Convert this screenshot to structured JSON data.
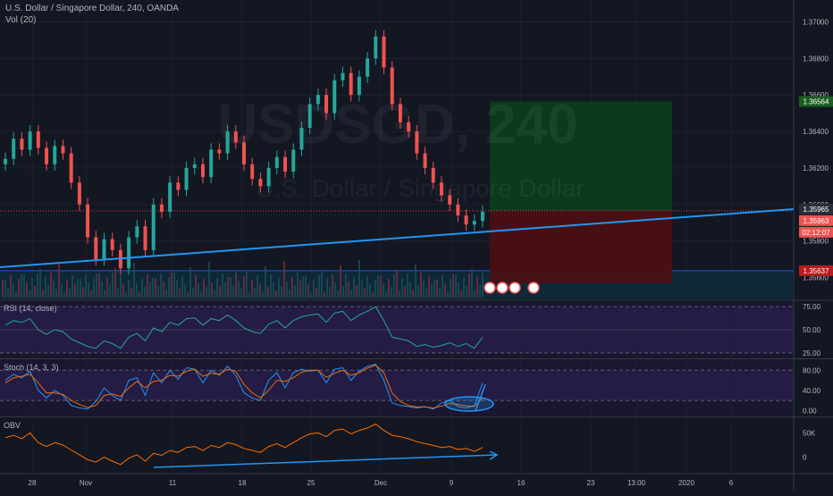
{
  "header": {
    "symbol_line": "U.S. Dollar / Singapore Dollar, 240, OANDA",
    "volume_label": "Vol (20)"
  },
  "watermark": {
    "ticker": "USDSGD, 240",
    "name": "U.S. Dollar / Singapore Dollar"
  },
  "panes": {
    "rsi_label": "RSI (14, close)",
    "stoch_label": "Stoch (14, 3, 3)",
    "obv_label": "OBV"
  },
  "price_badges": {
    "target": "1.36564",
    "last": "1.35965",
    "bid": "1.35963",
    "countdown": "02:12:07",
    "stop": "1.35637"
  },
  "colors": {
    "background": "#131722",
    "bull": "#26a69a",
    "bear": "#ef5350",
    "trendline": "#2196f3",
    "profit_zone": "#0b3d1a",
    "loss_zone": "#4a0f14",
    "rsi_line": "#26a69a",
    "stoch_k": "#2196f3",
    "stoch_d": "#ef6c00",
    "obv_line": "#ff6d00"
  },
  "chart_data": [
    {
      "type": "line",
      "title": "U.S. Dollar / Singapore Dollar, 240, OANDA",
      "yticks": [
        "1.37000",
        "1.36800",
        "1.36600",
        "1.36400",
        "1.36200",
        "1.36000",
        "1.35800",
        "1.35600"
      ],
      "ylim": [
        1.3548,
        1.3712
      ],
      "xticks": [
        "28",
        "Nov",
        "11",
        "18",
        "25",
        "Dec",
        "9",
        "16",
        "23",
        "13:00",
        "2020",
        "6"
      ],
      "series": [
        {
          "values": [
            1.3625,
            1.3636,
            1.363,
            1.364,
            1.3631,
            1.3622,
            1.3632,
            1.3628,
            1.3612,
            1.36,
            1.3582,
            1.357,
            1.3581,
            1.3575,
            1.3565,
            1.3582,
            1.3588,
            1.3575,
            1.36,
            1.3596,
            1.3612,
            1.3608,
            1.362,
            1.3622,
            1.3615,
            1.363,
            1.3628,
            1.364,
            1.3634,
            1.3622,
            1.3614,
            1.361,
            1.362,
            1.3626,
            1.3618,
            1.363,
            1.3642,
            1.3655,
            1.366,
            1.365,
            1.3668,
            1.3672,
            1.366,
            1.367,
            1.368,
            1.3692,
            1.3675,
            1.3655,
            1.3645,
            1.364,
            1.3628,
            1.362,
            1.3612,
            1.3605,
            1.36,
            1.3594,
            1.3589,
            1.3591,
            1.3596
          ]
        }
      ]
    },
    {
      "type": "line",
      "title": "RSI (14, close)",
      "yticks": [
        "75.00",
        "50.00",
        "25.00"
      ],
      "ylim": [
        20,
        80
      ],
      "series": [
        {
          "values": [
            55,
            60,
            58,
            62,
            50,
            45,
            50,
            48,
            40,
            36,
            32,
            30,
            38,
            35,
            30,
            42,
            46,
            38,
            52,
            48,
            58,
            55,
            62,
            63,
            55,
            62,
            60,
            66,
            60,
            52,
            48,
            46,
            56,
            60,
            52,
            60,
            64,
            66,
            67,
            58,
            68,
            70,
            60,
            66,
            70,
            75,
            60,
            42,
            40,
            38,
            32,
            34,
            31,
            33,
            36,
            32,
            35,
            30,
            42
          ]
        }
      ]
    },
    {
      "type": "line",
      "title": "Stoch (14, 3, 3)",
      "yticks": [
        "80.00",
        "40.00",
        "0.00"
      ],
      "ylim": [
        -10,
        100
      ],
      "series": [
        {
          "name": "K",
          "values": [
            60,
            72,
            65,
            78,
            40,
            25,
            40,
            30,
            10,
            5,
            3,
            18,
            45,
            30,
            20,
            60,
            65,
            30,
            75,
            55,
            80,
            62,
            85,
            82,
            55,
            80,
            70,
            88,
            70,
            35,
            25,
            20,
            60,
            75,
            45,
            75,
            82,
            78,
            80,
            55,
            82,
            85,
            60,
            78,
            88,
            92,
            60,
            15,
            10,
            8,
            5,
            8,
            3,
            15,
            20,
            8,
            5,
            10,
            55
          ]
        },
        {
          "name": "D",
          "values": [
            55,
            65,
            68,
            72,
            55,
            35,
            35,
            32,
            20,
            12,
            6,
            10,
            30,
            33,
            28,
            45,
            58,
            45,
            58,
            60,
            70,
            68,
            78,
            82,
            68,
            74,
            72,
            82,
            78,
            52,
            35,
            25,
            40,
            60,
            58,
            65,
            76,
            80,
            80,
            66,
            74,
            80,
            70,
            75,
            84,
            90,
            75,
            35,
            18,
            10,
            7,
            7,
            5,
            9,
            14,
            12,
            9,
            8,
            25
          ]
        }
      ]
    },
    {
      "type": "line",
      "title": "OBV",
      "yticks": [
        "50K",
        "0"
      ],
      "ylim": [
        -30000,
        80000
      ],
      "series": [
        {
          "values": [
            40000,
            45000,
            38000,
            50000,
            30000,
            22000,
            30000,
            25000,
            15000,
            5000,
            -5000,
            -10000,
            0,
            -8000,
            -15000,
            -2000,
            5000,
            -8000,
            8000,
            4000,
            14000,
            10000,
            20000,
            22000,
            14000,
            24000,
            20000,
            30000,
            26000,
            18000,
            14000,
            10000,
            22000,
            28000,
            20000,
            30000,
            40000,
            48000,
            50000,
            42000,
            55000,
            58000,
            48000,
            55000,
            60000,
            68000,
            55000,
            45000,
            42000,
            38000,
            32000,
            28000,
            24000,
            20000,
            22000,
            16000,
            18000,
            12000,
            20000
          ]
        }
      ]
    }
  ]
}
